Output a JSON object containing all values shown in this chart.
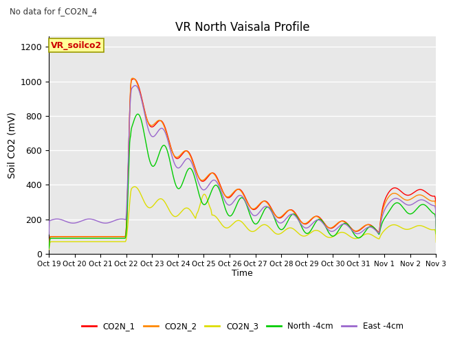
{
  "title": "VR North Vaisala Profile",
  "subtitle": "No data for f_CO2N_4",
  "ylabel": "Soil CO2 (mV)",
  "xlabel": "Time",
  "box_label": "VR_soilco2",
  "ylim": [
    0,
    1260
  ],
  "yticks": [
    0,
    200,
    400,
    600,
    800,
    1000,
    1200
  ],
  "xtick_labels": [
    "Oct 19",
    "Oct 20",
    "Oct 21",
    "Oct 22",
    "Oct 23",
    "Oct 24",
    "Oct 25",
    "Oct 26",
    "Oct 27",
    "Oct 28",
    "Oct 29",
    "Oct 30",
    "Oct 31",
    "Nov 1",
    "Nov 2",
    "Nov 3"
  ],
  "colors": {
    "CO2N_1": "#ff0000",
    "CO2N_2": "#ff8800",
    "CO2N_3": "#dddd00",
    "North_4cm": "#00cc00",
    "East_4cm": "#9966cc"
  },
  "legend_labels": [
    "CO2N_1",
    "CO2N_2",
    "CO2N_3",
    "North -4cm",
    "East -4cm"
  ],
  "background_color": "#e8e8e8",
  "grid_color": "#ffffff"
}
